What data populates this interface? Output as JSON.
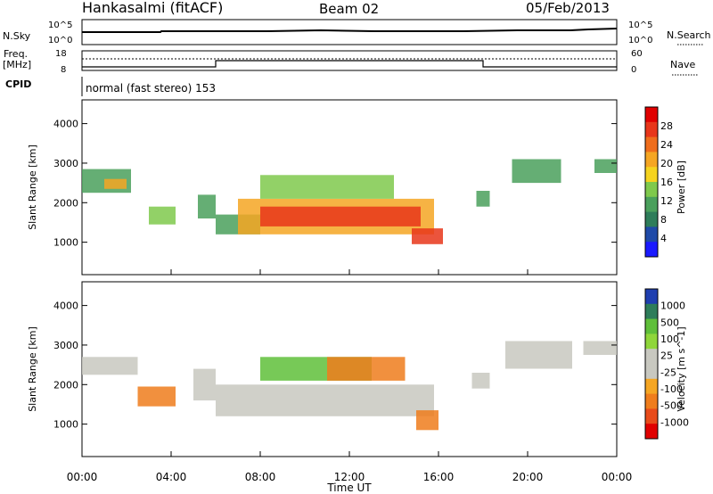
{
  "header": {
    "station": "Hankasalmi (fitACF)",
    "beam": "Beam 02",
    "date": "05/Feb/2013"
  },
  "side_labels": {
    "nsky": "N.Sky",
    "freq_line1": "Freq.",
    "freq_line2": "[MHz]",
    "cpid": "CPID",
    "nsearch": "N.Search",
    "nave": "Nave",
    "scale_hi": "10^5",
    "scale_lo": "10^0",
    "freq_hi": "18",
    "freq_lo": "8",
    "nave_hi": "60",
    "nave_lo": "0"
  },
  "cpid_text": "normal (fast stereo) 153",
  "colors": {
    "power_scale": [
      "#1a1aff",
      "#1f4aa8",
      "#2e7d5a",
      "#4aa05c",
      "#7fc94c",
      "#f5d31f",
      "#f5a623",
      "#ef6d1c",
      "#e8361a",
      "#e00000"
    ],
    "velocity_scale": [
      "#1f3fb0",
      "#2e7d5a",
      "#5fbf3a",
      "#8fd63a",
      "#c8c8c0",
      "#c8c8c0",
      "#f5a623",
      "#ef7d1c",
      "#e84b1a",
      "#e00000"
    ]
  },
  "chart_data": [
    {
      "type": "heatmap",
      "title": "",
      "xlabel": "Time UT",
      "ylabel": "Slant Range [km]",
      "colorbar_label": "Power [dB]",
      "x_ticks": [
        "00:00",
        "04:00",
        "08:00",
        "12:00",
        "16:00",
        "20:00",
        "00:00"
      ],
      "xlim_hours": [
        0,
        24
      ],
      "y_ticks": [
        1000,
        2000,
        3000,
        4000
      ],
      "ylim": [
        180,
        4600
      ],
      "colorbar_ticks": [
        4,
        8,
        12,
        16,
        20,
        24,
        28
      ],
      "colorbar_range": [
        0,
        32
      ],
      "regions": [
        {
          "t0": 0.0,
          "t1": 2.2,
          "r0": 2250,
          "r1": 2850,
          "level": 12
        },
        {
          "t0": 1.0,
          "t1": 2.0,
          "r0": 2350,
          "r1": 2600,
          "level": 20
        },
        {
          "t0": 3.0,
          "t1": 4.2,
          "r0": 1450,
          "r1": 1900,
          "level": 14
        },
        {
          "t0": 5.2,
          "t1": 6.0,
          "r0": 1600,
          "r1": 2200,
          "level": 10
        },
        {
          "t0": 6.0,
          "t1": 8.0,
          "r0": 1200,
          "r1": 1700,
          "level": 10
        },
        {
          "t0": 7.0,
          "t1": 15.8,
          "r0": 1200,
          "r1": 2100,
          "level": 22
        },
        {
          "t0": 8.0,
          "t1": 15.2,
          "r0": 1400,
          "r1": 1900,
          "level": 28
        },
        {
          "t0": 8.0,
          "t1": 14.0,
          "r0": 2100,
          "r1": 2700,
          "level": 14
        },
        {
          "t0": 14.8,
          "t1": 16.2,
          "r0": 950,
          "r1": 1350,
          "level": 28
        },
        {
          "t0": 17.7,
          "t1": 18.3,
          "r0": 1900,
          "r1": 2300,
          "level": 10
        },
        {
          "t0": 19.3,
          "t1": 21.5,
          "r0": 2500,
          "r1": 3100,
          "level": 12
        },
        {
          "t0": 23.0,
          "t1": 24.0,
          "r0": 2750,
          "r1": 3100,
          "level": 10
        }
      ]
    },
    {
      "type": "heatmap",
      "title": "",
      "xlabel": "Time UT",
      "ylabel": "Slant Range [km]",
      "colorbar_label": "Velocity [m s^-1]",
      "x_ticks": [
        "00:00",
        "04:00",
        "08:00",
        "12:00",
        "16:00",
        "20:00",
        "00:00"
      ],
      "xlim_hours": [
        0,
        24
      ],
      "y_ticks": [
        1000,
        2000,
        3000,
        4000
      ],
      "ylim": [
        180,
        4600
      ],
      "colorbar_ticks": [
        "1000",
        "500",
        "100",
        "25",
        "-25",
        "-100",
        "-500",
        "-1000"
      ],
      "regions": [
        {
          "t0": 0.0,
          "t1": 2.5,
          "r0": 2250,
          "r1": 2700,
          "v": 0
        },
        {
          "t0": 2.5,
          "t1": 4.2,
          "r0": 1450,
          "r1": 1950,
          "v": -300
        },
        {
          "t0": 5.0,
          "t1": 6.0,
          "r0": 1600,
          "r1": 2400,
          "v": 0
        },
        {
          "t0": 6.0,
          "t1": 15.8,
          "r0": 1200,
          "r1": 2000,
          "v": 0
        },
        {
          "t0": 8.0,
          "t1": 13.0,
          "r0": 2100,
          "r1": 2700,
          "v": 150
        },
        {
          "t0": 11.0,
          "t1": 14.5,
          "r0": 2100,
          "r1": 2700,
          "v": -300
        },
        {
          "t0": 15.0,
          "t1": 16.0,
          "r0": 850,
          "r1": 1350,
          "v": -300
        },
        {
          "t0": 17.5,
          "t1": 18.3,
          "r0": 1900,
          "r1": 2300,
          "v": 0
        },
        {
          "t0": 19.0,
          "t1": 22.0,
          "r0": 2400,
          "r1": 3100,
          "v": 0
        },
        {
          "t0": 22.5,
          "t1": 24.0,
          "r0": 2750,
          "r1": 3100,
          "v": 0
        }
      ]
    }
  ]
}
